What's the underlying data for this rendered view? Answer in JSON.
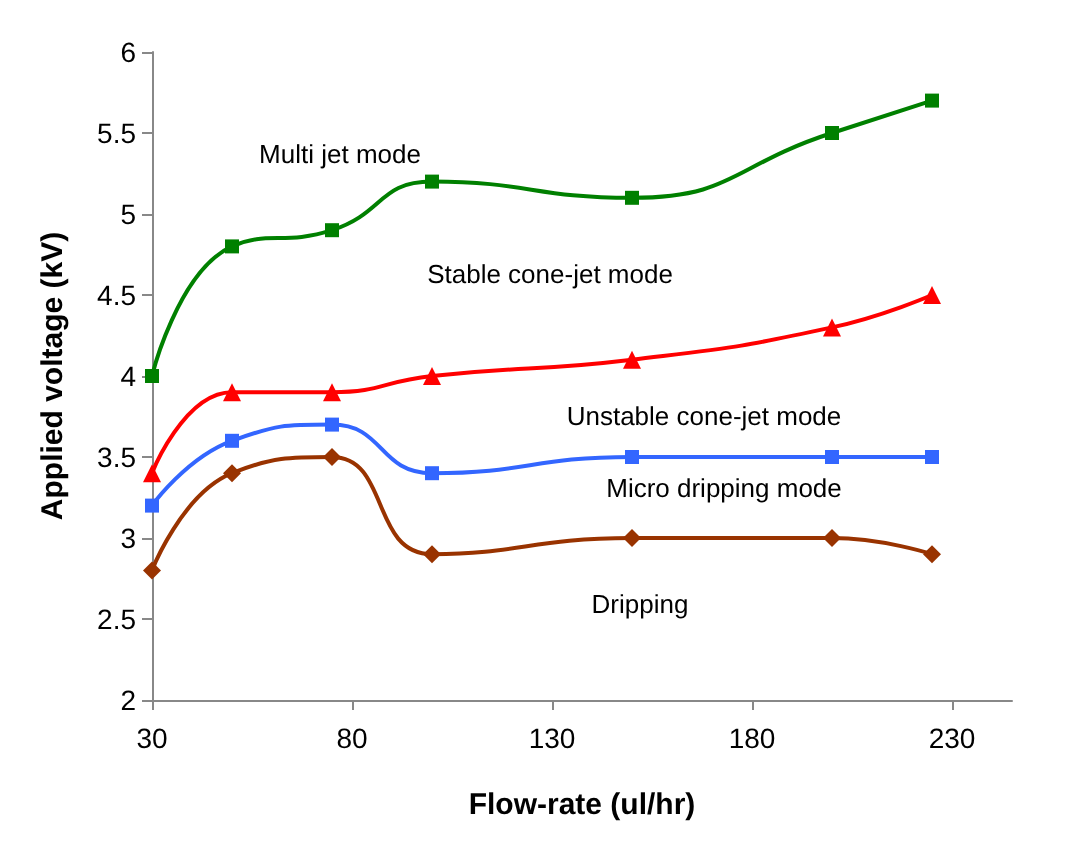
{
  "chart_data": {
    "type": "line",
    "xlabel": "Flow-rate (ul/hr)",
    "ylabel": "Applied voltage (kV)",
    "xlim": [
      30,
      245
    ],
    "xticks": [
      30,
      80,
      130,
      180,
      230
    ],
    "ylim": [
      2,
      6
    ],
    "yticks": [
      2,
      2.5,
      3,
      3.5,
      4,
      4.5,
      5,
      5.5,
      6
    ],
    "x": [
      30,
      50,
      75,
      100,
      150,
      200,
      225
    ],
    "grid": false,
    "series": [
      {
        "color": "#008000",
        "marker": "square",
        "values": [
          4.0,
          4.8,
          4.9,
          5.2,
          5.1,
          5.5,
          5.7
        ]
      },
      {
        "color": "#ff0000",
        "marker": "triangle",
        "values": [
          3.4,
          3.9,
          3.9,
          4.0,
          4.1,
          4.3,
          4.5
        ]
      },
      {
        "color": "#3366ff",
        "marker": "square",
        "values": [
          3.2,
          3.6,
          3.7,
          3.4,
          3.5,
          3.5,
          3.5
        ]
      },
      {
        "color": "#993300",
        "marker": "diamond",
        "values": [
          2.8,
          3.4,
          3.5,
          2.9,
          3.0,
          3.0,
          2.9
        ]
      }
    ],
    "annotations": [
      "Multi jet mode",
      "Stable cone-jet mode",
      "Unstable cone-jet mode",
      "Micro dripping mode",
      "Dripping"
    ]
  }
}
